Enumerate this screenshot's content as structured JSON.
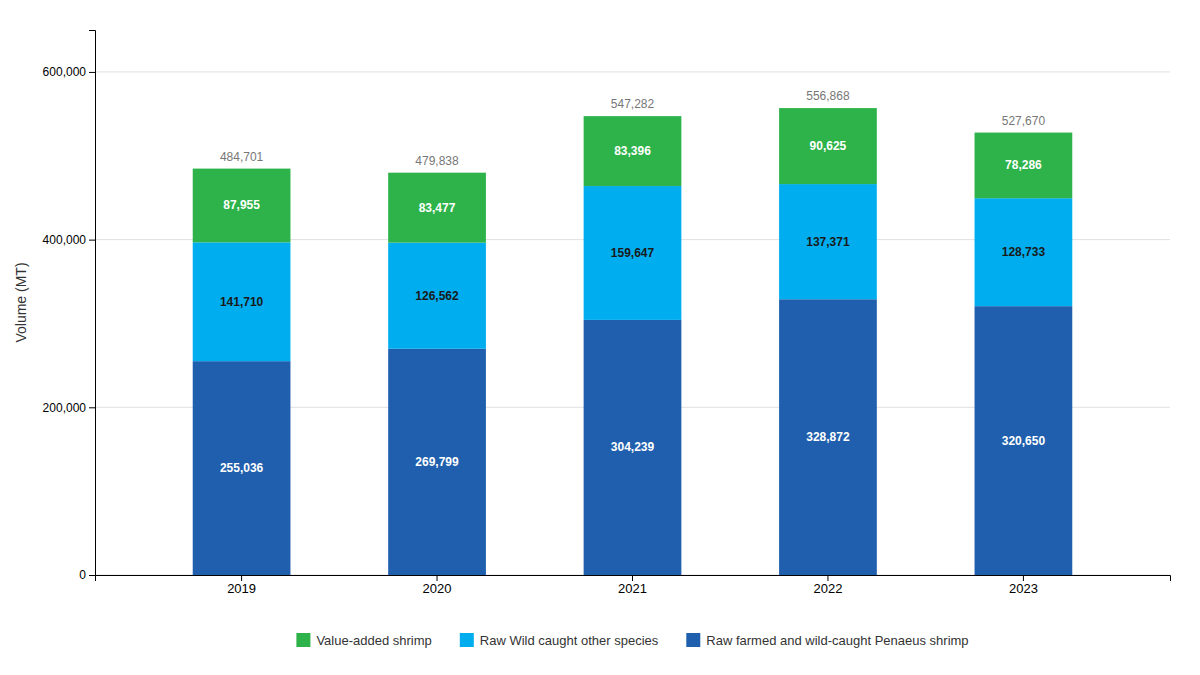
{
  "chart_data": {
    "type": "bar",
    "stacked": true,
    "ylabel": "Volume (MT)",
    "categories": [
      "2019",
      "2020",
      "2021",
      "2022",
      "2023"
    ],
    "series": [
      {
        "name": "Raw farmed and wild-caught Penaeus shrimp",
        "color": "#1F5FAD",
        "values": [
          255036,
          269799,
          304239,
          328872,
          320650
        ],
        "value_labels": [
          "255,036",
          "269,799",
          "304,239",
          "328,872",
          "320,650"
        ]
      },
      {
        "name": "Raw Wild caught other species",
        "color": "#00AEEF",
        "values": [
          141710,
          126562,
          159647,
          137371,
          128733
        ],
        "value_labels": [
          "141,710",
          "126,562",
          "159,647",
          "137,371",
          "128,733"
        ]
      },
      {
        "name": "Value-added shrimp",
        "color": "#2DB34A",
        "values": [
          87955,
          83477,
          83396,
          90625,
          78286
        ],
        "value_labels": [
          "87,955",
          "83,477",
          "83,396",
          "90,625",
          "78,286"
        ]
      }
    ],
    "totals": [
      484701,
      479838,
      547282,
      556868,
      527670
    ],
    "total_labels": [
      "484,701",
      "479,838",
      "547,282",
      "556,868",
      "527,670"
    ],
    "ylim": [
      0,
      650000
    ],
    "yticks": [
      {
        "value": 0,
        "label": "0"
      },
      {
        "value": 200000,
        "label": "200,000"
      },
      {
        "value": 400000,
        "label": "400,000"
      },
      {
        "value": 600000,
        "label": "600,000"
      }
    ],
    "grid": true,
    "data_labels": true,
    "legend": "bottom"
  }
}
